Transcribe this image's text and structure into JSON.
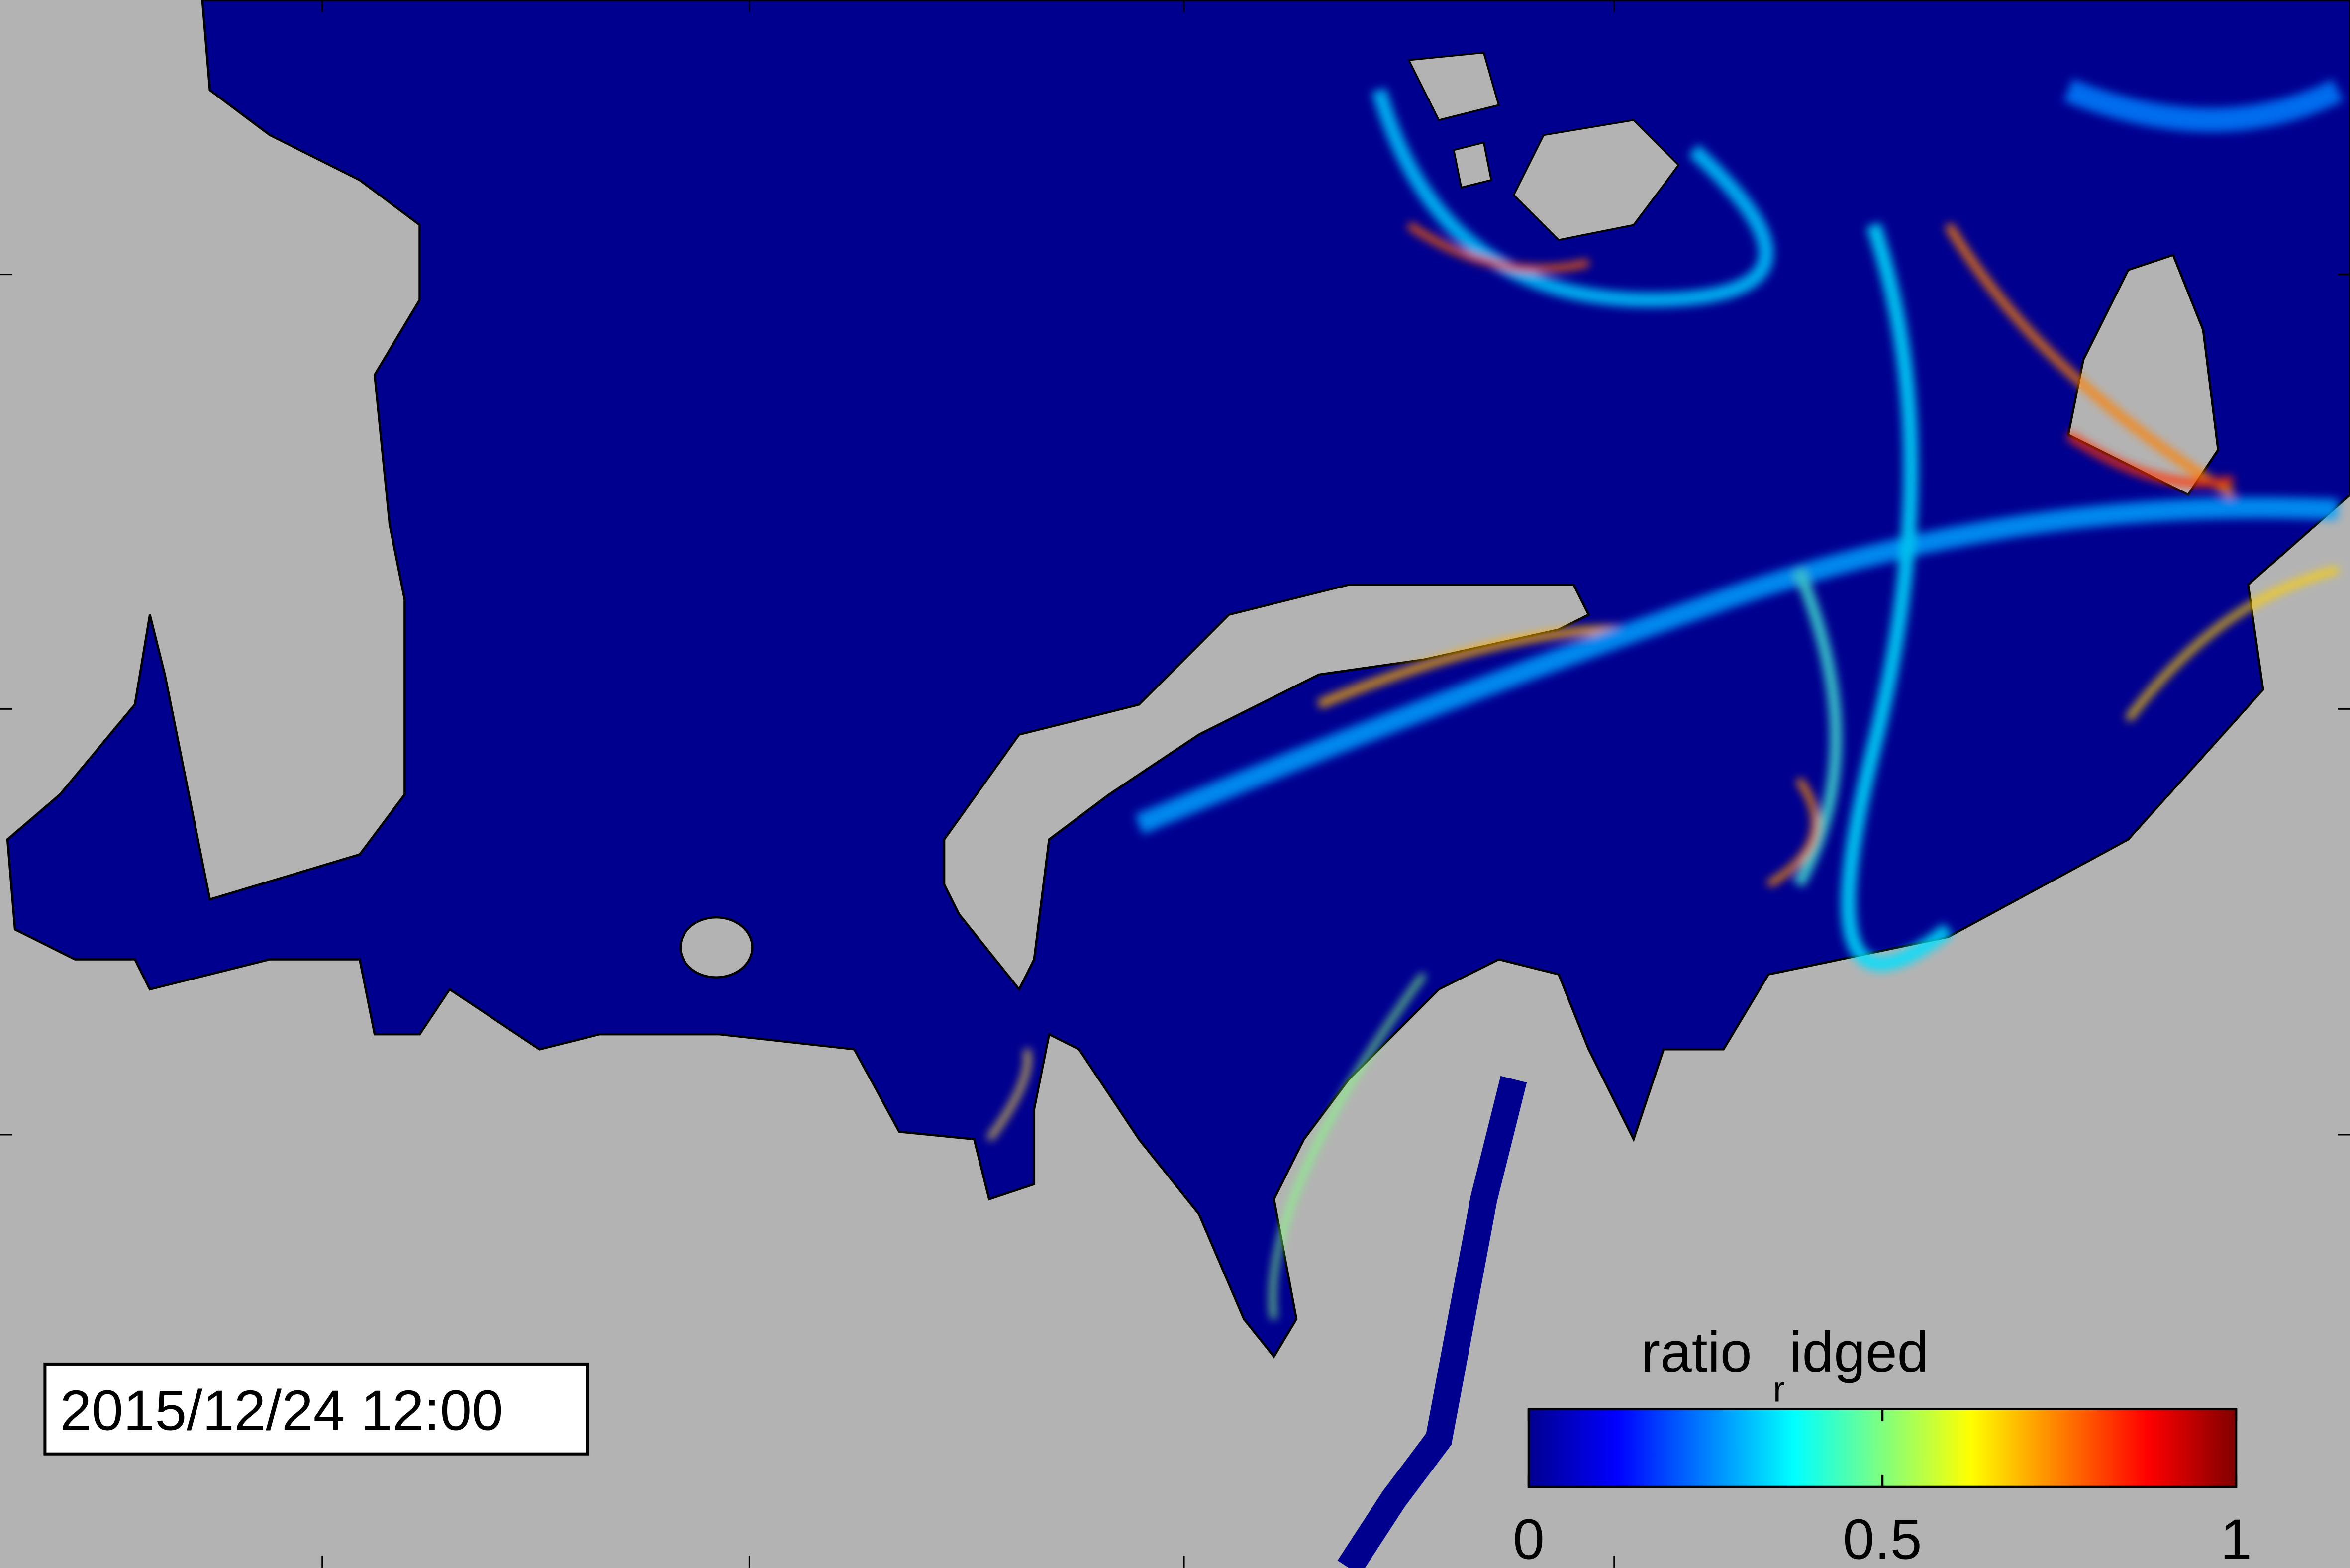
{
  "timestamp": "2015/12/24 12:00",
  "colorbar": {
    "title_parts": [
      "ratio",
      "r",
      "idged"
    ],
    "lim": [
      0,
      1
    ],
    "ticks": [
      0,
      0.5,
      1
    ],
    "colormap": "jet"
  }
}
